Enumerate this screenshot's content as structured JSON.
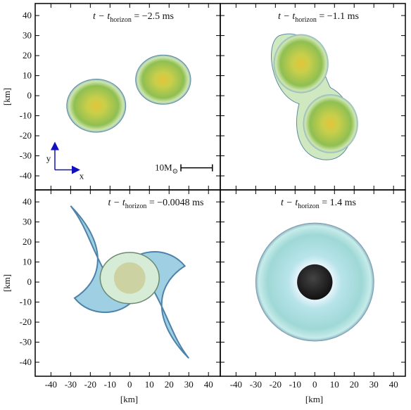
{
  "figure": {
    "xlabel": "[km]",
    "ylabel": "[km]",
    "xlim": [
      -48,
      46
    ],
    "ylim": [
      -47,
      46
    ],
    "xticks": [
      -40,
      -30,
      -20,
      -10,
      0,
      10,
      20,
      30,
      40
    ],
    "yticks": [
      -40,
      -30,
      -20,
      -10,
      0,
      10,
      20,
      30,
      40
    ],
    "panels": [
      {
        "title": {
          "lhs": "t − t",
          "sub": "horizon",
          "rhs": " = −2.5 ms"
        }
      },
      {
        "title": {
          "lhs": "t − t",
          "sub": "horizon",
          "rhs": " = −1.1 ms"
        }
      },
      {
        "title": {
          "lhs": "t − t",
          "sub": "horizon",
          "rhs": " = −0.0048 ms"
        }
      },
      {
        "title": {
          "lhs": "t − t",
          "sub": "horizon",
          "rhs": " = 1.4 ms"
        }
      }
    ],
    "scale_bar": {
      "text": "10M",
      "sub": "⊙"
    },
    "axes_indicator": {
      "x": "x",
      "y": "y"
    }
  }
}
